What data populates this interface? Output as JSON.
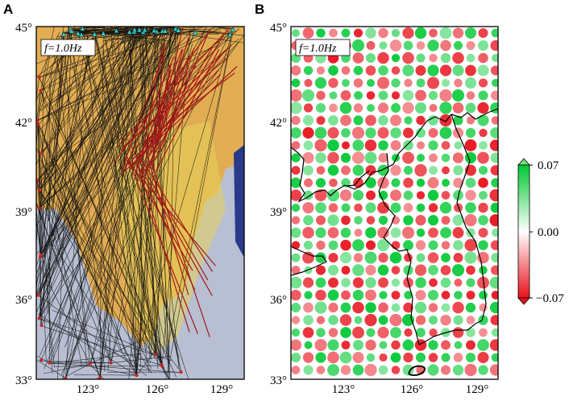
{
  "panels": [
    {
      "id": "A",
      "letter": "A",
      "freq_label": "f=1.0Hz",
      "lat_ticks": [
        "45°",
        "42°",
        "39°",
        "36°",
        "33°"
      ],
      "lon_ticks": [
        "123°",
        "126°",
        "129°"
      ]
    },
    {
      "id": "B",
      "letter": "B",
      "freq_label": "f=1.0Hz",
      "lat_ticks": [
        "45°",
        "42°",
        "39°",
        "36°",
        "33°"
      ],
      "lon_ticks": [
        "123°",
        "126°",
        "129°"
      ]
    }
  ],
  "map_extent": {
    "lon_min": 121,
    "lon_max": 130,
    "lat_min": 33,
    "lat_max": 45
  },
  "colorbar": {
    "max_label": "0.07",
    "mid_label": "0.00",
    "min_label": "−0.07",
    "colors": {
      "positive": "#00c832",
      "zero": "#ffffff",
      "negative": "#e8101a"
    }
  },
  "colors": {
    "ray_black": "#111111",
    "ray_red": "#a01818",
    "station_triangle": "#32c8c8",
    "event_dot": "#d02020",
    "land_tan": "#e2ad52",
    "sea_gray": "#b8bfd2"
  }
}
